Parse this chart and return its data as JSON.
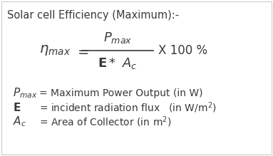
{
  "title": "Solar cell Efficiency (Maximum):-",
  "bg_color": "#ffffff",
  "text_color": "#3a3a3a",
  "figsize": [
    3.83,
    2.19
  ],
  "dpi": 100,
  "title_fontsize": 10.5,
  "formula_fontsize": 12,
  "desc_fontsize": 10,
  "border_color": "#cccccc"
}
